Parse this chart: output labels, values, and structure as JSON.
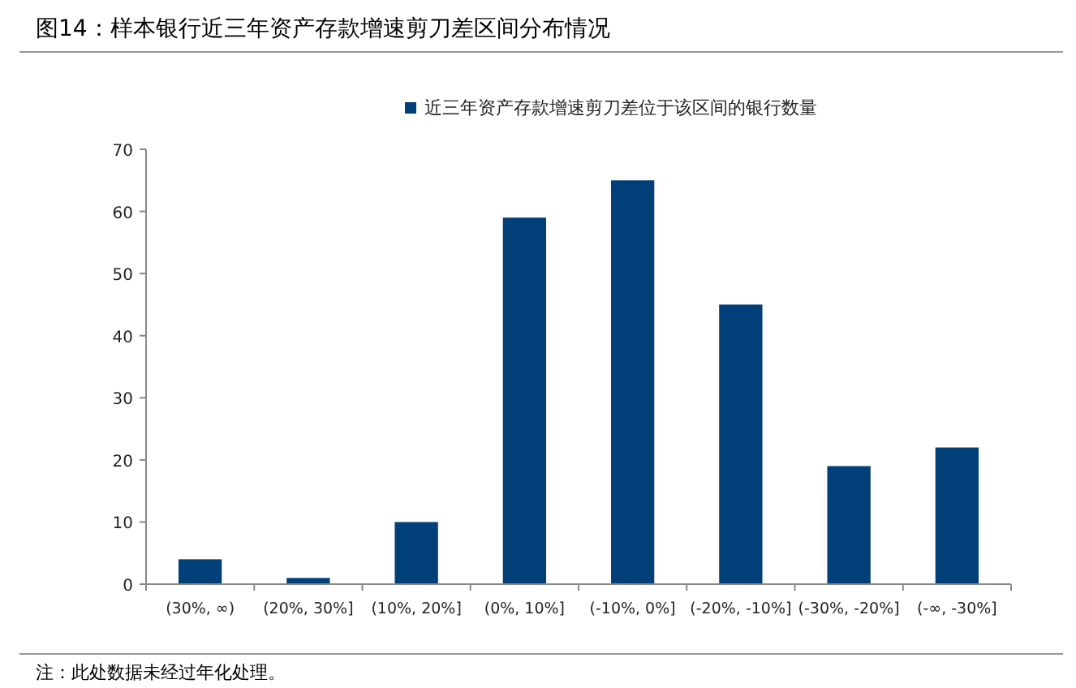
{
  "chart_data": {
    "type": "bar",
    "title": "图14：样本银行近三年资产存款增速剪刀差区间分布情况",
    "categories": [
      "(30%, ∞)",
      "(20%, 30%]",
      "(10%, 20%]",
      "(0%, 10%]",
      "(-10%, 0%]",
      "(-20%, -10%]",
      "(-30%, -20%]",
      "(-∞, -30%]"
    ],
    "series": [
      {
        "name": "近三年资产存款增速剪刀差位于该区间的银行数量",
        "color": "#003f78",
        "values": [
          4,
          1,
          10,
          59,
          65,
          45,
          19,
          22
        ]
      }
    ],
    "ylim": [
      0,
      70
    ],
    "yticks": [
      0,
      10,
      20,
      30,
      40,
      50,
      60,
      70
    ],
    "legend": "top",
    "grid": false,
    "annotations": [
      "注：此处数据未经过年化处理。"
    ]
  }
}
